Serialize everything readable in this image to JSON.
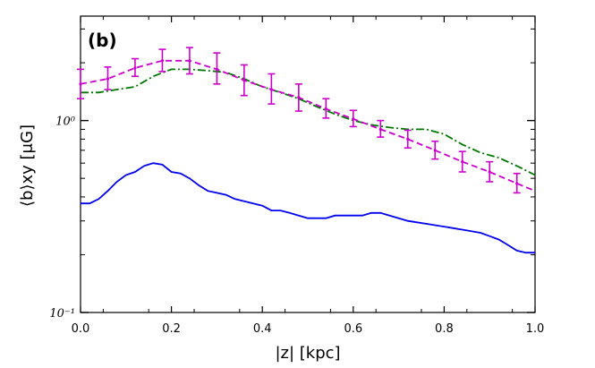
{
  "chart_data": {
    "type": "line",
    "panel_label": "(b)",
    "xlabel": "|z|  [kpc]",
    "ylabel": "⟨b⟩xy  [μG]",
    "xlim": [
      0.0,
      1.0
    ],
    "ylim": [
      0.1,
      3.5
    ],
    "yscale": "log",
    "x_ticks": [
      0.0,
      0.2,
      0.4,
      0.6,
      0.8,
      1.0
    ],
    "x_tick_labels": [
      "0.0",
      "0.2",
      "0.4",
      "0.6",
      "0.8",
      "1.0"
    ],
    "y_major_ticks": [
      0.1,
      1.0
    ],
    "y_tick_labels": [
      "10⁻¹",
      "10⁰"
    ],
    "series": [
      {
        "name": "blue-solid",
        "color": "#0000ee",
        "style": "solid",
        "x": [
          0.0,
          0.02,
          0.04,
          0.06,
          0.08,
          0.1,
          0.12,
          0.14,
          0.16,
          0.18,
          0.2,
          0.22,
          0.24,
          0.26,
          0.28,
          0.3,
          0.32,
          0.34,
          0.36,
          0.38,
          0.4,
          0.42,
          0.44,
          0.46,
          0.48,
          0.5,
          0.52,
          0.54,
          0.56,
          0.58,
          0.6,
          0.62,
          0.64,
          0.66,
          0.68,
          0.7,
          0.72,
          0.74,
          0.76,
          0.78,
          0.8,
          0.82,
          0.84,
          0.86,
          0.88,
          0.9,
          0.92,
          0.94,
          0.96,
          0.98,
          1.0
        ],
        "y": [
          0.37,
          0.37,
          0.39,
          0.43,
          0.48,
          0.52,
          0.54,
          0.58,
          0.6,
          0.59,
          0.54,
          0.53,
          0.5,
          0.46,
          0.43,
          0.42,
          0.41,
          0.39,
          0.38,
          0.37,
          0.36,
          0.34,
          0.34,
          0.33,
          0.32,
          0.31,
          0.31,
          0.31,
          0.32,
          0.32,
          0.32,
          0.32,
          0.33,
          0.33,
          0.32,
          0.31,
          0.3,
          0.295,
          0.29,
          0.285,
          0.28,
          0.275,
          0.27,
          0.265,
          0.26,
          0.25,
          0.24,
          0.225,
          0.21,
          0.205,
          0.205
        ]
      },
      {
        "name": "green-dashdot",
        "color": "#007700",
        "style": "dashdot",
        "x": [
          0.0,
          0.04,
          0.08,
          0.12,
          0.16,
          0.2,
          0.24,
          0.28,
          0.32,
          0.36,
          0.4,
          0.44,
          0.48,
          0.52,
          0.56,
          0.6,
          0.64,
          0.68,
          0.72,
          0.76,
          0.8,
          0.84,
          0.88,
          0.92,
          0.96,
          1.0
        ],
        "y": [
          1.4,
          1.4,
          1.45,
          1.5,
          1.7,
          1.85,
          1.85,
          1.82,
          1.78,
          1.65,
          1.5,
          1.4,
          1.3,
          1.18,
          1.08,
          1.0,
          0.95,
          0.92,
          0.9,
          0.9,
          0.85,
          0.75,
          0.68,
          0.64,
          0.58,
          0.52
        ]
      },
      {
        "name": "magenta-dashed",
        "color": "#cc00cc",
        "style": "dashed",
        "x": [
          0.0,
          0.06,
          0.12,
          0.18,
          0.24,
          0.3,
          0.36,
          0.42,
          0.48,
          0.54,
          0.6,
          0.66,
          0.72,
          0.78,
          0.84,
          0.9,
          0.96,
          1.0
        ],
        "y": [
          1.55,
          1.65,
          1.88,
          2.05,
          2.05,
          1.85,
          1.62,
          1.45,
          1.32,
          1.15,
          1.02,
          0.9,
          0.8,
          0.7,
          0.61,
          0.54,
          0.47,
          0.43
        ],
        "error_bars": {
          "x": [
            0.0,
            0.06,
            0.12,
            0.18,
            0.24,
            0.3,
            0.36,
            0.42,
            0.48,
            0.54,
            0.6,
            0.66,
            0.72,
            0.78,
            0.84,
            0.9,
            0.96
          ],
          "y": [
            1.55,
            1.65,
            1.88,
            2.05,
            2.05,
            1.85,
            1.62,
            1.45,
            1.32,
            1.15,
            1.02,
            0.9,
            0.8,
            0.7,
            0.61,
            0.54,
            0.47
          ],
          "lower": [
            1.3,
            1.45,
            1.7,
            1.8,
            1.75,
            1.55,
            1.35,
            1.22,
            1.12,
            1.03,
            0.93,
            0.82,
            0.72,
            0.63,
            0.54,
            0.48,
            0.42
          ],
          "upper": [
            1.85,
            1.9,
            2.1,
            2.35,
            2.4,
            2.25,
            1.95,
            1.75,
            1.55,
            1.3,
            1.13,
            1.0,
            0.89,
            0.78,
            0.69,
            0.61,
            0.53
          ]
        }
      }
    ]
  }
}
